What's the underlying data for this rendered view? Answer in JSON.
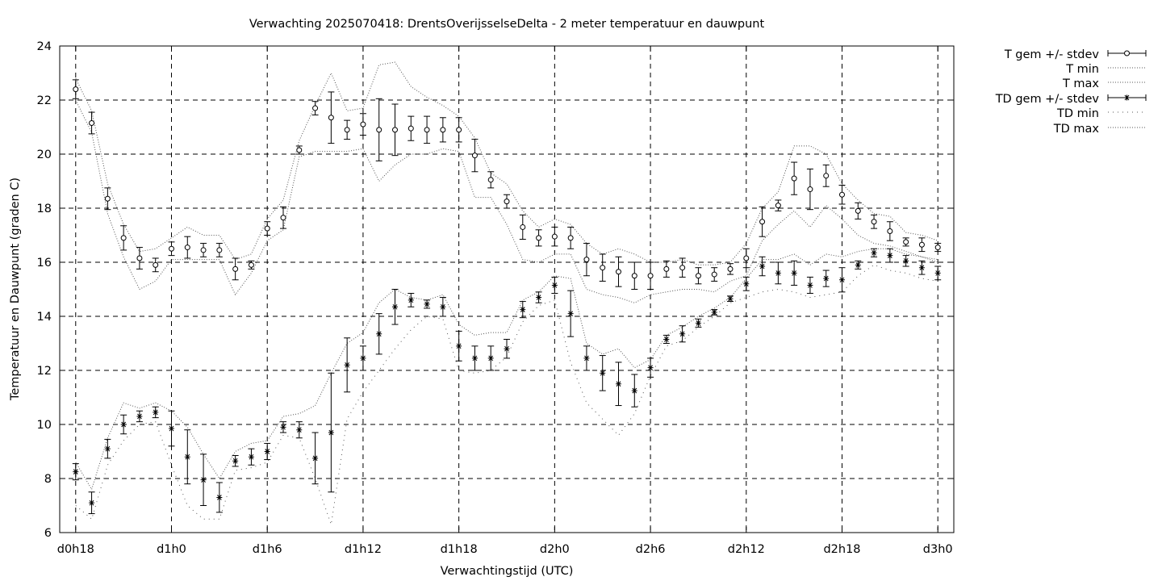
{
  "chart_data": {
    "type": "line",
    "title": "Verwachting 2025070418: DrentsOverijsselseDelta - 2 meter temperatuur en dauwpunt",
    "xlabel": "Verwachtingstijd (UTC)",
    "ylabel": "Temperatuur en Dauwpunt (graden C)",
    "ylim": [
      6,
      24
    ],
    "yticks": [
      6,
      8,
      10,
      12,
      14,
      16,
      18,
      20,
      22,
      24
    ],
    "xlim_hours": [
      -1,
      55
    ],
    "xticks": [
      {
        "h": 0,
        "label": "d0h18"
      },
      {
        "h": 6,
        "label": "d1h0"
      },
      {
        "h": 12,
        "label": "d1h6"
      },
      {
        "h": 18,
        "label": "d1h12"
      },
      {
        "h": 24,
        "label": "d1h18"
      },
      {
        "h": 30,
        "label": "d2h0"
      },
      {
        "h": 36,
        "label": "d2h6"
      },
      {
        "h": 42,
        "label": "d2h12"
      },
      {
        "h": 48,
        "label": "d2h18"
      },
      {
        "h": 54,
        "label": "d3h0"
      }
    ],
    "grid": true,
    "legend_position": "outside top-right",
    "legend": {
      "t_mean": "T gem +/- stdev",
      "t_min": "T min",
      "t_max": "T max",
      "td_mean": "TD gem +/- stdev",
      "td_min": "TD min",
      "td_max": "TD max"
    },
    "hours": [
      0,
      1,
      2,
      3,
      4,
      5,
      6,
      7,
      8,
      9,
      10,
      11,
      12,
      13,
      14,
      15,
      16,
      17,
      18,
      19,
      20,
      21,
      22,
      23,
      24,
      25,
      26,
      27,
      28,
      29,
      30,
      31,
      32,
      33,
      34,
      35,
      36,
      37,
      38,
      39,
      40,
      41,
      42,
      43,
      44,
      45,
      46,
      47,
      48,
      49,
      50,
      51,
      52,
      53,
      54
    ],
    "series": [
      {
        "key": "t_mean",
        "name": "T gem +/- stdev",
        "marker": "circle",
        "values": [
          22.4,
          21.15,
          18.35,
          16.9,
          16.15,
          15.9,
          16.5,
          16.55,
          16.45,
          16.45,
          15.75,
          15.9,
          17.25,
          17.65,
          20.15,
          21.7,
          21.35,
          20.9,
          21.1,
          20.9,
          20.9,
          20.95,
          20.9,
          20.9,
          20.9,
          19.95,
          19.05,
          18.25,
          17.3,
          16.9,
          16.95,
          16.9,
          16.1,
          15.8,
          15.65,
          15.5,
          15.5,
          15.75,
          15.8,
          15.5,
          15.55,
          15.75,
          16.15,
          17.5,
          18.1,
          19.1,
          18.7,
          19.2,
          18.5,
          17.9,
          17.5,
          17.15,
          16.75,
          16.65,
          16.55
        ],
        "stdev": [
          0.35,
          0.4,
          0.4,
          0.45,
          0.4,
          0.25,
          0.25,
          0.4,
          0.25,
          0.25,
          0.4,
          0.15,
          0.25,
          0.4,
          0.15,
          0.25,
          0.95,
          0.35,
          0.4,
          1.15,
          0.95,
          0.45,
          0.5,
          0.45,
          0.45,
          0.6,
          0.3,
          0.25,
          0.45,
          0.3,
          0.35,
          0.4,
          0.6,
          0.5,
          0.55,
          0.5,
          0.5,
          0.3,
          0.35,
          0.3,
          0.25,
          0.2,
          0.35,
          0.55,
          0.2,
          0.6,
          0.75,
          0.4,
          0.35,
          0.3,
          0.25,
          0.35,
          0.15,
          0.25,
          0.15
        ]
      },
      {
        "key": "t_min",
        "name": "T min",
        "style": "dotted",
        "values": [
          22.0,
          20.8,
          17.8,
          16.2,
          15.0,
          15.3,
          16.1,
          16.1,
          16.1,
          16.1,
          14.8,
          15.6,
          16.8,
          17.2,
          19.9,
          20.1,
          20.1,
          20.1,
          20.2,
          19.0,
          19.6,
          20.0,
          20.0,
          20.2,
          20.1,
          18.4,
          18.4,
          17.4,
          16.1,
          16.0,
          16.3,
          16.3,
          15.0,
          14.8,
          14.7,
          14.5,
          14.8,
          14.9,
          15.0,
          15.0,
          14.9,
          15.3,
          15.5,
          16.8,
          17.4,
          17.9,
          17.3,
          18.1,
          17.6,
          17.0,
          16.7,
          16.6,
          16.4,
          16.2,
          16.1
        ]
      },
      {
        "key": "t_max",
        "name": "T max",
        "style": "dotted",
        "values": [
          22.8,
          21.6,
          18.9,
          17.4,
          16.4,
          16.5,
          16.9,
          17.3,
          17.0,
          17.0,
          16.1,
          16.3,
          17.6,
          18.3,
          20.5,
          21.8,
          23.0,
          21.6,
          21.7,
          23.3,
          23.4,
          22.5,
          22.1,
          21.8,
          21.4,
          20.6,
          19.3,
          18.9,
          17.9,
          17.3,
          17.6,
          17.4,
          16.7,
          16.3,
          16.5,
          16.3,
          16.0,
          16.0,
          16.1,
          15.9,
          15.9,
          16.0,
          16.7,
          18.0,
          18.6,
          20.3,
          20.3,
          20.0,
          18.9,
          18.3,
          17.8,
          17.7,
          17.1,
          17.0,
          16.8
        ]
      },
      {
        "key": "td_mean",
        "name": "TD gem +/- stdev",
        "marker": "star",
        "values": [
          8.25,
          7.1,
          9.1,
          10.0,
          10.3,
          10.45,
          9.85,
          8.8,
          7.95,
          7.3,
          8.65,
          8.8,
          9.0,
          9.9,
          9.8,
          8.75,
          9.7,
          12.2,
          12.45,
          13.35,
          14.35,
          14.6,
          14.45,
          14.35,
          12.9,
          12.45,
          12.45,
          12.8,
          14.25,
          14.7,
          15.15,
          14.1,
          12.45,
          11.9,
          11.5,
          11.25,
          12.1,
          13.15,
          13.35,
          13.75,
          14.15,
          14.65,
          15.2,
          15.85,
          15.6,
          15.6,
          15.15,
          15.4,
          15.35,
          15.9,
          16.35,
          16.25,
          16.05,
          15.8,
          15.6
        ],
        "stdev": [
          0.3,
          0.4,
          0.35,
          0.35,
          0.2,
          0.2,
          0.65,
          1.0,
          0.95,
          0.55,
          0.2,
          0.3,
          0.3,
          0.2,
          0.3,
          0.95,
          2.2,
          1.0,
          0.45,
          0.75,
          0.65,
          0.25,
          0.15,
          0.35,
          0.55,
          0.45,
          0.45,
          0.35,
          0.3,
          0.2,
          0.3,
          0.85,
          0.45,
          0.65,
          0.8,
          0.6,
          0.35,
          0.15,
          0.3,
          0.15,
          0.1,
          0.1,
          0.25,
          0.35,
          0.4,
          0.45,
          0.3,
          0.3,
          0.45,
          0.15,
          0.15,
          0.25,
          0.2,
          0.25,
          0.25
        ]
      },
      {
        "key": "td_min",
        "name": "TD min",
        "style": "dotted-sparse",
        "values": [
          7.0,
          6.5,
          8.5,
          9.4,
          10.0,
          10.1,
          8.5,
          7.0,
          6.5,
          6.5,
          8.3,
          8.4,
          8.6,
          9.6,
          9.5,
          8.0,
          6.3,
          10.2,
          11.2,
          12.0,
          12.8,
          13.5,
          14.0,
          13.9,
          12.0,
          11.9,
          12.0,
          12.5,
          13.8,
          14.4,
          14.6,
          12.3,
          10.8,
          10.2,
          9.6,
          10.4,
          11.8,
          12.9,
          13.1,
          13.6,
          14.0,
          14.5,
          14.7,
          14.9,
          15.0,
          14.9,
          14.7,
          14.8,
          14.9,
          15.5,
          15.9,
          15.7,
          15.6,
          15.4,
          15.3
        ]
      },
      {
        "key": "td_max",
        "name": "TD max",
        "style": "dotted",
        "values": [
          8.6,
          7.6,
          9.5,
          10.8,
          10.6,
          10.8,
          10.5,
          9.9,
          8.9,
          8.0,
          9.0,
          9.3,
          9.4,
          10.3,
          10.4,
          10.7,
          11.9,
          13.0,
          13.4,
          14.5,
          15.0,
          14.7,
          14.6,
          14.8,
          13.7,
          13.3,
          13.4,
          13.4,
          14.6,
          14.9,
          15.5,
          15.4,
          13.0,
          12.6,
          12.8,
          12.1,
          12.4,
          13.3,
          13.6,
          14.0,
          14.3,
          14.7,
          15.4,
          16.1,
          16.1,
          16.3,
          15.9,
          16.3,
          16.2,
          16.4,
          16.5,
          16.5,
          16.3,
          16.2,
          16.0
        ]
      }
    ]
  }
}
